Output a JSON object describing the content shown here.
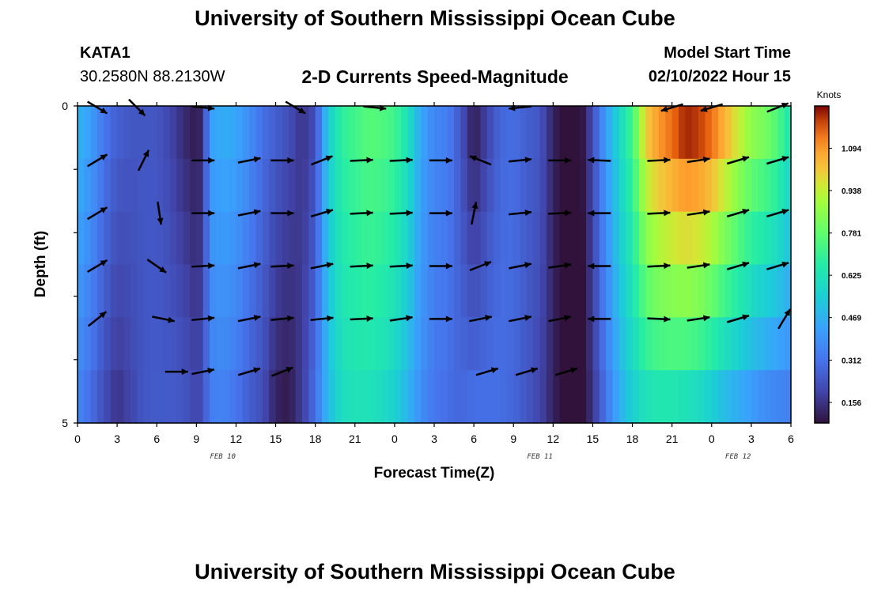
{
  "header": {
    "title": "University of Southern Mississippi Ocean Cube",
    "station": "KATA1",
    "coords": "30.2580N  88.2130W",
    "chart_title": "2-D Currents Speed-Magnitude",
    "model_label": "Model Start Time",
    "model_time": "02/10/2022 Hour 15"
  },
  "footer": {
    "title": "University of Southern Mississippi Ocean Cube"
  },
  "colors": {
    "arrow": "#000000",
    "frame": "#000000",
    "background": "#ffffff"
  },
  "chart_data": {
    "type": "heatmap",
    "xlabel": "Forecast Time(Z)",
    "ylabel": "Depth (ft)",
    "x_tick_labels": [
      "0",
      "3",
      "6",
      "9",
      "12",
      "15",
      "18",
      "21",
      "0",
      "3",
      "6",
      "9",
      "12",
      "15",
      "18",
      "21",
      "0",
      "3",
      "6"
    ],
    "date_labels": [
      {
        "label": "FEB 10",
        "hour": 11
      },
      {
        "label": "FEB 11",
        "hour": 35
      },
      {
        "label": "FEB 12",
        "hour": 50
      }
    ],
    "xlim_hours": [
      0,
      54
    ],
    "y_tick_labels": [
      "0",
      "5"
    ],
    "ylim": [
      0,
      5
    ],
    "depth_rows": 6,
    "colorbar": {
      "unit": "Knots",
      "range": [
        0.08,
        1.25
      ],
      "ticks": [
        0.156,
        0.312,
        0.469,
        0.625,
        0.781,
        0.938,
        1.094
      ],
      "tick_labels": [
        "0.156",
        "0.312",
        "0.469",
        "0.625",
        "0.781",
        "0.938",
        "1.094"
      ]
    },
    "speed_profile": {
      "hours": [
        0,
        1,
        2,
        3,
        4,
        5,
        6,
        7,
        8,
        9,
        9.5,
        10,
        11,
        12,
        13,
        14,
        15,
        16,
        17,
        18,
        19,
        20,
        21,
        22,
        23,
        24,
        25,
        26,
        27,
        28,
        29,
        30,
        31,
        32,
        33,
        34,
        35,
        36,
        37,
        38,
        39,
        40,
        41,
        42,
        43,
        44,
        45,
        46,
        47,
        48,
        49,
        50,
        51,
        52,
        53,
        54
      ],
      "surface": [
        0.48,
        0.42,
        0.32,
        0.26,
        0.24,
        0.24,
        0.24,
        0.2,
        0.14,
        0.1,
        0.14,
        0.42,
        0.46,
        0.44,
        0.38,
        0.3,
        0.26,
        0.22,
        0.16,
        0.22,
        0.55,
        0.68,
        0.72,
        0.76,
        0.75,
        0.72,
        0.62,
        0.44,
        0.36,
        0.34,
        0.24,
        0.1,
        0.2,
        0.28,
        0.3,
        0.26,
        0.24,
        0.12,
        0.05,
        0.05,
        0.22,
        0.42,
        0.58,
        0.72,
        1.0,
        1.1,
        1.15,
        1.22,
        1.2,
        1.15,
        1.05,
        0.95,
        0.86,
        0.82,
        0.75,
        0.62
      ],
      "bottom": [
        0.36,
        0.3,
        0.22,
        0.16,
        0.2,
        0.24,
        0.25,
        0.25,
        0.24,
        0.2,
        0.22,
        0.34,
        0.35,
        0.32,
        0.26,
        0.22,
        0.12,
        0.1,
        0.18,
        0.3,
        0.5,
        0.6,
        0.62,
        0.62,
        0.6,
        0.56,
        0.48,
        0.38,
        0.32,
        0.3,
        0.28,
        0.3,
        0.3,
        0.3,
        0.28,
        0.24,
        0.2,
        0.12,
        0.05,
        0.04,
        0.16,
        0.32,
        0.46,
        0.56,
        0.62,
        0.64,
        0.64,
        0.62,
        0.6,
        0.55,
        0.5,
        0.46,
        0.42,
        0.38,
        0.36,
        0.34
      ]
    },
    "vectors": [
      {
        "hour": 1.5,
        "depth_row": 0,
        "u": 1.0,
        "v": -0.6
      },
      {
        "hour": 4.5,
        "depth_row": 0,
        "u": 1.0,
        "v": -1.0
      },
      {
        "hour": 9.5,
        "depth_row": 0,
        "u": 1.0,
        "v": -0.1
      },
      {
        "hour": 16.5,
        "depth_row": 0,
        "u": 1.0,
        "v": -0.6
      },
      {
        "hour": 22.5,
        "depth_row": 0,
        "u": 1.0,
        "v": -0.1
      },
      {
        "hour": 33.5,
        "depth_row": 0,
        "u": -1.0,
        "v": -0.1
      },
      {
        "hour": 45.0,
        "depth_row": 0,
        "u": -1.0,
        "v": -0.3
      },
      {
        "hour": 48.0,
        "depth_row": 0,
        "u": -1.0,
        "v": -0.3
      },
      {
        "hour": 53.0,
        "depth_row": 0,
        "u": 1.0,
        "v": 0.4
      },
      {
        "hour": 1.5,
        "depth_row": 1,
        "u": 1.0,
        "v": 0.6
      },
      {
        "hour": 5.0,
        "depth_row": 1,
        "u": 0.5,
        "v": 1.0
      },
      {
        "hour": 9.5,
        "depth_row": 1,
        "u": 1.0,
        "v": 0.0
      },
      {
        "hour": 13.0,
        "depth_row": 1,
        "u": 1.0,
        "v": 0.2
      },
      {
        "hour": 15.5,
        "depth_row": 1,
        "u": 1.0,
        "v": 0.0
      },
      {
        "hour": 18.5,
        "depth_row": 1,
        "u": 1.0,
        "v": 0.4
      },
      {
        "hour": 21.5,
        "depth_row": 1,
        "u": 1.0,
        "v": 0.05
      },
      {
        "hour": 24.5,
        "depth_row": 1,
        "u": 1.0,
        "v": 0.05
      },
      {
        "hour": 27.5,
        "depth_row": 1,
        "u": 1.0,
        "v": 0.0
      },
      {
        "hour": 30.5,
        "depth_row": 1,
        "u": -1.0,
        "v": 0.4
      },
      {
        "hour": 33.5,
        "depth_row": 1,
        "u": 1.0,
        "v": 0.1
      },
      {
        "hour": 36.5,
        "depth_row": 1,
        "u": 1.0,
        "v": 0.0
      },
      {
        "hour": 39.5,
        "depth_row": 1,
        "u": -1.0,
        "v": 0.05
      },
      {
        "hour": 44.0,
        "depth_row": 1,
        "u": 1.0,
        "v": 0.05
      },
      {
        "hour": 47.0,
        "depth_row": 1,
        "u": 1.0,
        "v": 0.15
      },
      {
        "hour": 50.0,
        "depth_row": 1,
        "u": 1.0,
        "v": 0.3
      },
      {
        "hour": 53.0,
        "depth_row": 1,
        "u": 1.0,
        "v": 0.3
      },
      {
        "hour": 1.5,
        "depth_row": 2,
        "u": 1.0,
        "v": 0.6
      },
      {
        "hour": 6.2,
        "depth_row": 2,
        "u": 0.15,
        "v": -1.0
      },
      {
        "hour": 9.5,
        "depth_row": 2,
        "u": 1.0,
        "v": 0.0
      },
      {
        "hour": 13.0,
        "depth_row": 2,
        "u": 1.0,
        "v": 0.2
      },
      {
        "hour": 15.5,
        "depth_row": 2,
        "u": 1.0,
        "v": 0.0
      },
      {
        "hour": 18.5,
        "depth_row": 2,
        "u": 1.0,
        "v": 0.3
      },
      {
        "hour": 21.5,
        "depth_row": 2,
        "u": 1.0,
        "v": 0.05
      },
      {
        "hour": 24.5,
        "depth_row": 2,
        "u": 1.0,
        "v": 0.05
      },
      {
        "hour": 27.5,
        "depth_row": 2,
        "u": 1.0,
        "v": 0.0
      },
      {
        "hour": 30.0,
        "depth_row": 2,
        "u": 0.2,
        "v": 1.0
      },
      {
        "hour": 33.5,
        "depth_row": 2,
        "u": 1.0,
        "v": 0.1
      },
      {
        "hour": 36.5,
        "depth_row": 2,
        "u": 1.0,
        "v": 0.05
      },
      {
        "hour": 39.5,
        "depth_row": 2,
        "u": -1.0,
        "v": 0.0
      },
      {
        "hour": 44.0,
        "depth_row": 2,
        "u": 1.0,
        "v": 0.05
      },
      {
        "hour": 47.0,
        "depth_row": 2,
        "u": 1.0,
        "v": 0.15
      },
      {
        "hour": 50.0,
        "depth_row": 2,
        "u": 1.0,
        "v": 0.3
      },
      {
        "hour": 53.0,
        "depth_row": 2,
        "u": 1.0,
        "v": 0.3
      },
      {
        "hour": 1.5,
        "depth_row": 3,
        "u": 1.0,
        "v": 0.6
      },
      {
        "hour": 6.0,
        "depth_row": 3,
        "u": 1.0,
        "v": -0.7
      },
      {
        "hour": 9.5,
        "depth_row": 3,
        "u": 1.0,
        "v": 0.05
      },
      {
        "hour": 13.0,
        "depth_row": 3,
        "u": 1.0,
        "v": 0.2
      },
      {
        "hour": 15.5,
        "depth_row": 3,
        "u": 1.0,
        "v": 0.05
      },
      {
        "hour": 18.5,
        "depth_row": 3,
        "u": 1.0,
        "v": 0.2
      },
      {
        "hour": 21.5,
        "depth_row": 3,
        "u": 1.0,
        "v": 0.05
      },
      {
        "hour": 24.5,
        "depth_row": 3,
        "u": 1.0,
        "v": 0.05
      },
      {
        "hour": 27.5,
        "depth_row": 3,
        "u": 1.0,
        "v": 0.0
      },
      {
        "hour": 30.5,
        "depth_row": 3,
        "u": 1.0,
        "v": 0.4
      },
      {
        "hour": 33.5,
        "depth_row": 3,
        "u": 1.0,
        "v": 0.2
      },
      {
        "hour": 36.5,
        "depth_row": 3,
        "u": 1.0,
        "v": 0.15
      },
      {
        "hour": 39.5,
        "depth_row": 3,
        "u": -1.0,
        "v": 0.0
      },
      {
        "hour": 44.0,
        "depth_row": 3,
        "u": 1.0,
        "v": 0.05
      },
      {
        "hour": 47.0,
        "depth_row": 3,
        "u": 1.0,
        "v": 0.15
      },
      {
        "hour": 50.0,
        "depth_row": 3,
        "u": 1.0,
        "v": 0.3
      },
      {
        "hour": 53.0,
        "depth_row": 3,
        "u": 1.0,
        "v": 0.3
      },
      {
        "hour": 1.5,
        "depth_row": 4,
        "u": 1.0,
        "v": 0.8
      },
      {
        "hour": 6.5,
        "depth_row": 4,
        "u": 1.0,
        "v": -0.2
      },
      {
        "hour": 9.5,
        "depth_row": 4,
        "u": 1.0,
        "v": 0.1
      },
      {
        "hour": 13.0,
        "depth_row": 4,
        "u": 1.0,
        "v": 0.2
      },
      {
        "hour": 15.5,
        "depth_row": 4,
        "u": 1.0,
        "v": 0.1
      },
      {
        "hour": 18.5,
        "depth_row": 4,
        "u": 1.0,
        "v": 0.1
      },
      {
        "hour": 21.5,
        "depth_row": 4,
        "u": 1.0,
        "v": 0.05
      },
      {
        "hour": 24.5,
        "depth_row": 4,
        "u": 1.0,
        "v": 0.15
      },
      {
        "hour": 27.5,
        "depth_row": 4,
        "u": 1.0,
        "v": 0.0
      },
      {
        "hour": 30.5,
        "depth_row": 4,
        "u": 1.0,
        "v": 0.2
      },
      {
        "hour": 33.5,
        "depth_row": 4,
        "u": 1.0,
        "v": 0.2
      },
      {
        "hour": 36.5,
        "depth_row": 4,
        "u": 1.0,
        "v": 0.2
      },
      {
        "hour": 39.5,
        "depth_row": 4,
        "u": -1.0,
        "v": 0.0
      },
      {
        "hour": 44.0,
        "depth_row": 4,
        "u": 1.0,
        "v": -0.05
      },
      {
        "hour": 47.0,
        "depth_row": 4,
        "u": 1.0,
        "v": 0.15
      },
      {
        "hour": 50.0,
        "depth_row": 4,
        "u": 1.0,
        "v": 0.3
      },
      {
        "hour": 53.5,
        "depth_row": 4,
        "u": 0.6,
        "v": 1.0
      },
      {
        "hour": 7.5,
        "depth_row": 5,
        "u": 1.0,
        "v": 0.0
      },
      {
        "hour": 9.5,
        "depth_row": 5,
        "u": 1.0,
        "v": 0.2
      },
      {
        "hour": 13.0,
        "depth_row": 5,
        "u": 1.0,
        "v": 0.3
      },
      {
        "hour": 15.5,
        "depth_row": 5,
        "u": 1.0,
        "v": 0.4
      },
      {
        "hour": 31.0,
        "depth_row": 5,
        "u": 1.0,
        "v": 0.3
      },
      {
        "hour": 34.0,
        "depth_row": 5,
        "u": 1.0,
        "v": 0.3
      },
      {
        "hour": 37.0,
        "depth_row": 5,
        "u": 1.0,
        "v": 0.3
      }
    ]
  }
}
